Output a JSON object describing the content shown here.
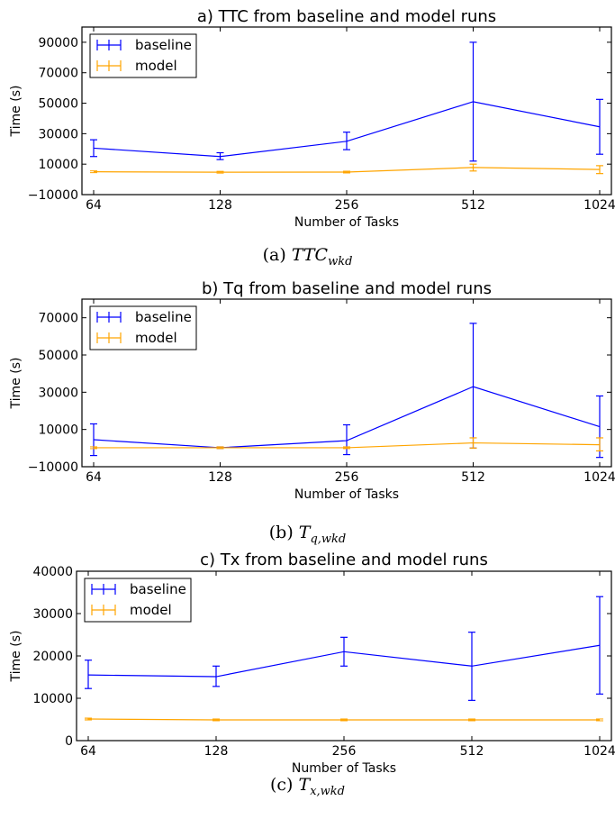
{
  "chart_data": [
    {
      "type": "line",
      "title": "a) TTC from baseline and model runs",
      "xlabel": "Number of Tasks",
      "ylabel": "Time (s)",
      "categories": [
        "64",
        "128",
        "256",
        "512",
        "1024"
      ],
      "ylim": [
        -10000,
        100000
      ],
      "yticks": [
        -10000,
        10000,
        30000,
        50000,
        70000,
        90000
      ],
      "ytick_labels": [
        "−10000",
        "10000",
        "30000",
        "50000",
        "70000",
        "90000"
      ],
      "legend_position": "top-left",
      "series": [
        {
          "name": "baseline",
          "color": "#0000ff",
          "values": [
            20500,
            15000,
            25000,
            51000,
            34500
          ],
          "err_low": [
            15000,
            13000,
            19500,
            12000,
            16500
          ],
          "err_high": [
            26000,
            17500,
            31000,
            90000,
            52500
          ]
        },
        {
          "name": "model",
          "color": "#ffa500",
          "values": [
            5000,
            4700,
            4800,
            7800,
            6500
          ],
          "err_low": [
            5000,
            4700,
            4800,
            5500,
            3800
          ],
          "err_high": [
            5000,
            4700,
            4800,
            10000,
            9000
          ]
        }
      ],
      "caption_prefix": "(a) ",
      "caption_main": "TTC",
      "caption_sub": "wkd"
    },
    {
      "type": "line",
      "title": "b) Tq from baseline and model runs",
      "xlabel": "Number of Tasks",
      "ylabel": "Time (s)",
      "categories": [
        "64",
        "128",
        "256",
        "512",
        "1024"
      ],
      "ylim": [
        -10000,
        80000
      ],
      "yticks": [
        -10000,
        10000,
        30000,
        50000,
        70000
      ],
      "ytick_labels": [
        "−10000",
        "10000",
        "30000",
        "50000",
        "70000"
      ],
      "legend_position": "top-left",
      "series": [
        {
          "name": "baseline",
          "color": "#0000ff",
          "values": [
            4500,
            200,
            4000,
            33000,
            11500
          ],
          "err_low": [
            -4000,
            200,
            -3500,
            0,
            -5000
          ],
          "err_high": [
            13000,
            200,
            12500,
            67000,
            28000
          ]
        },
        {
          "name": "model",
          "color": "#ffa500",
          "values": [
            200,
            200,
            200,
            2800,
            1800
          ],
          "err_low": [
            200,
            200,
            200,
            0,
            -1500
          ],
          "err_high": [
            200,
            200,
            200,
            5500,
            5500
          ]
        }
      ],
      "caption_prefix": "(b) ",
      "caption_main": "T",
      "caption_sub": "q,wkd"
    },
    {
      "type": "line",
      "title": "c) Tx from baseline and model runs",
      "xlabel": "Number of Tasks",
      "ylabel": "Time (s)",
      "categories": [
        "64",
        "128",
        "256",
        "512",
        "1024"
      ],
      "ylim": [
        0,
        40000
      ],
      "yticks": [
        0,
        10000,
        20000,
        30000,
        40000
      ],
      "ytick_labels": [
        "0",
        "10000",
        "20000",
        "30000",
        "40000"
      ],
      "legend_position": "top-left",
      "series": [
        {
          "name": "baseline",
          "color": "#0000ff",
          "values": [
            15500,
            15100,
            21000,
            17600,
            22500
          ],
          "err_low": [
            12300,
            12800,
            17600,
            9500,
            11000
          ],
          "err_high": [
            19000,
            17600,
            24400,
            25600,
            34000
          ]
        },
        {
          "name": "model",
          "color": "#ffa500",
          "values": [
            5100,
            4900,
            4900,
            4900,
            4900
          ],
          "err_low": [
            4900,
            4900,
            4900,
            4900,
            4900
          ],
          "err_high": [
            5300,
            4900,
            4900,
            4900,
            4900
          ]
        }
      ],
      "caption_prefix": "(c) ",
      "caption_main": "T",
      "caption_sub": "x,wkd"
    }
  ]
}
